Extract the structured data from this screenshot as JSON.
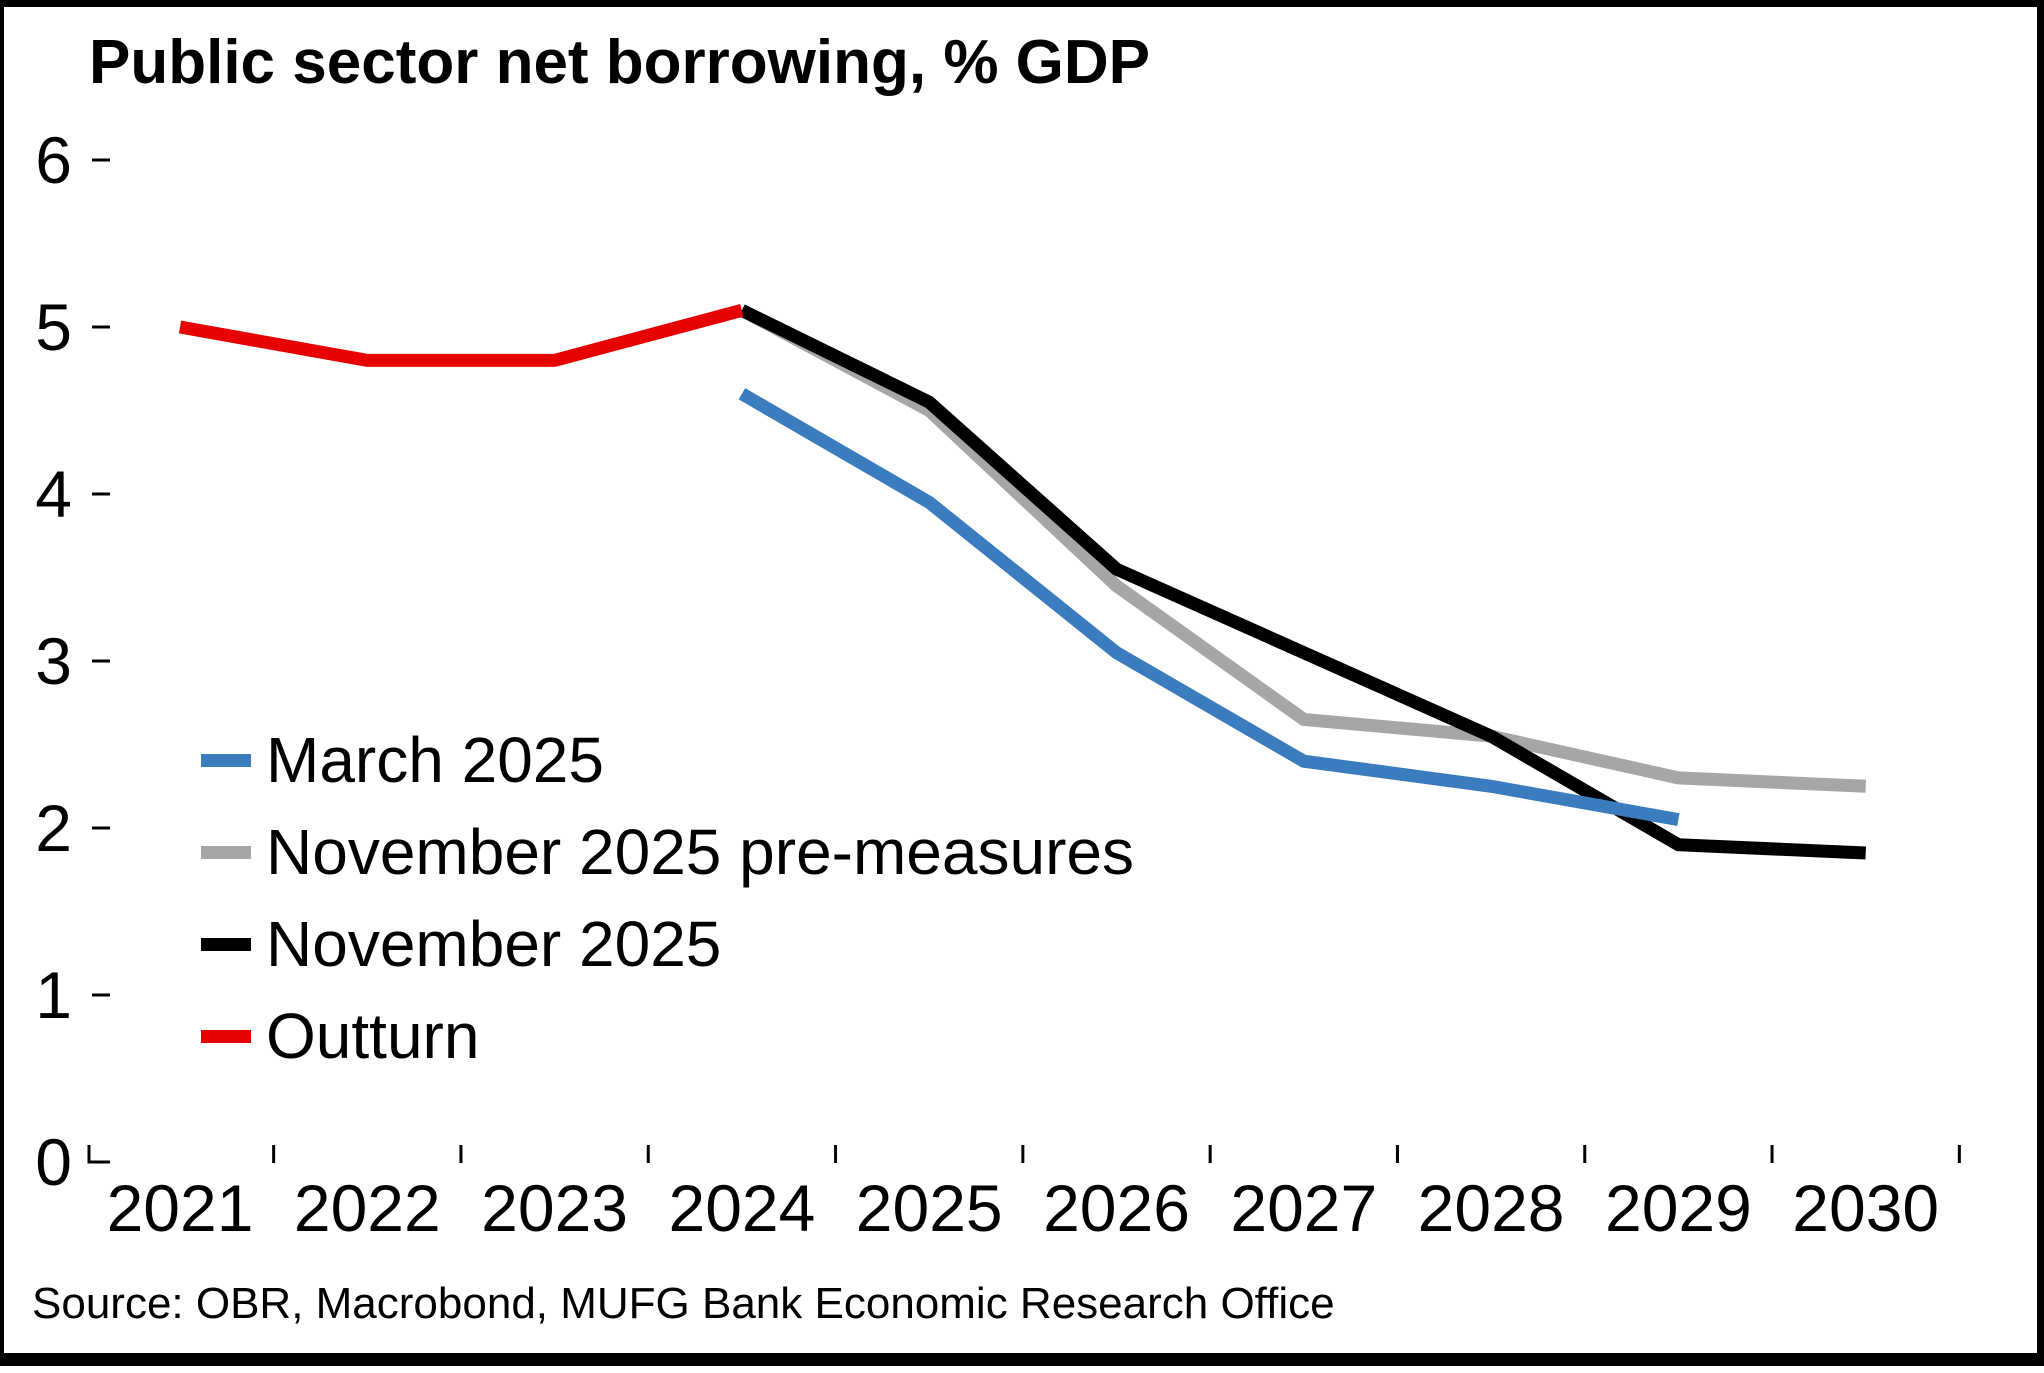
{
  "title": "Public sector net borrowing, % GDP",
  "source": "Source: OBR, Macrobond, MUFG Bank Economic Research Office",
  "chart_data": {
    "type": "line",
    "title": "Public sector net borrowing, % GDP",
    "xlabel": "",
    "ylabel": "% GDP",
    "ylim": [
      0,
      6
    ],
    "yticks": [
      0,
      1,
      2,
      3,
      4,
      5,
      6
    ],
    "xticks": [
      2021,
      2022,
      2023,
      2024,
      2025,
      2026,
      2027,
      2028,
      2029,
      2030
    ],
    "grid": false,
    "legend_position": "middle-left",
    "series": [
      {
        "name": "March 2025",
        "color": "#3A7CBE",
        "x": [
          2024,
          2025,
          2026,
          2027,
          2028,
          2029
        ],
        "values": [
          4.6,
          3.95,
          3.05,
          2.4,
          2.25,
          2.05
        ]
      },
      {
        "name": "November 2025 pre-measures",
        "color": "#A6A6A6",
        "x": [
          2024,
          2025,
          2026,
          2027,
          2028,
          2029,
          2030
        ],
        "values": [
          5.1,
          4.5,
          3.45,
          2.65,
          2.55,
          2.3,
          2.25
        ]
      },
      {
        "name": "November 2025",
        "color": "#000000",
        "x": [
          2024,
          2025,
          2026,
          2027,
          2028,
          2029,
          2030
        ],
        "values": [
          5.1,
          4.55,
          3.55,
          3.05,
          2.55,
          1.9,
          1.85
        ]
      },
      {
        "name": "Outturn",
        "color": "#E60000",
        "x": [
          2021,
          2022,
          2023,
          2024
        ],
        "values": [
          5.0,
          4.8,
          4.8,
          5.1
        ]
      }
    ]
  }
}
